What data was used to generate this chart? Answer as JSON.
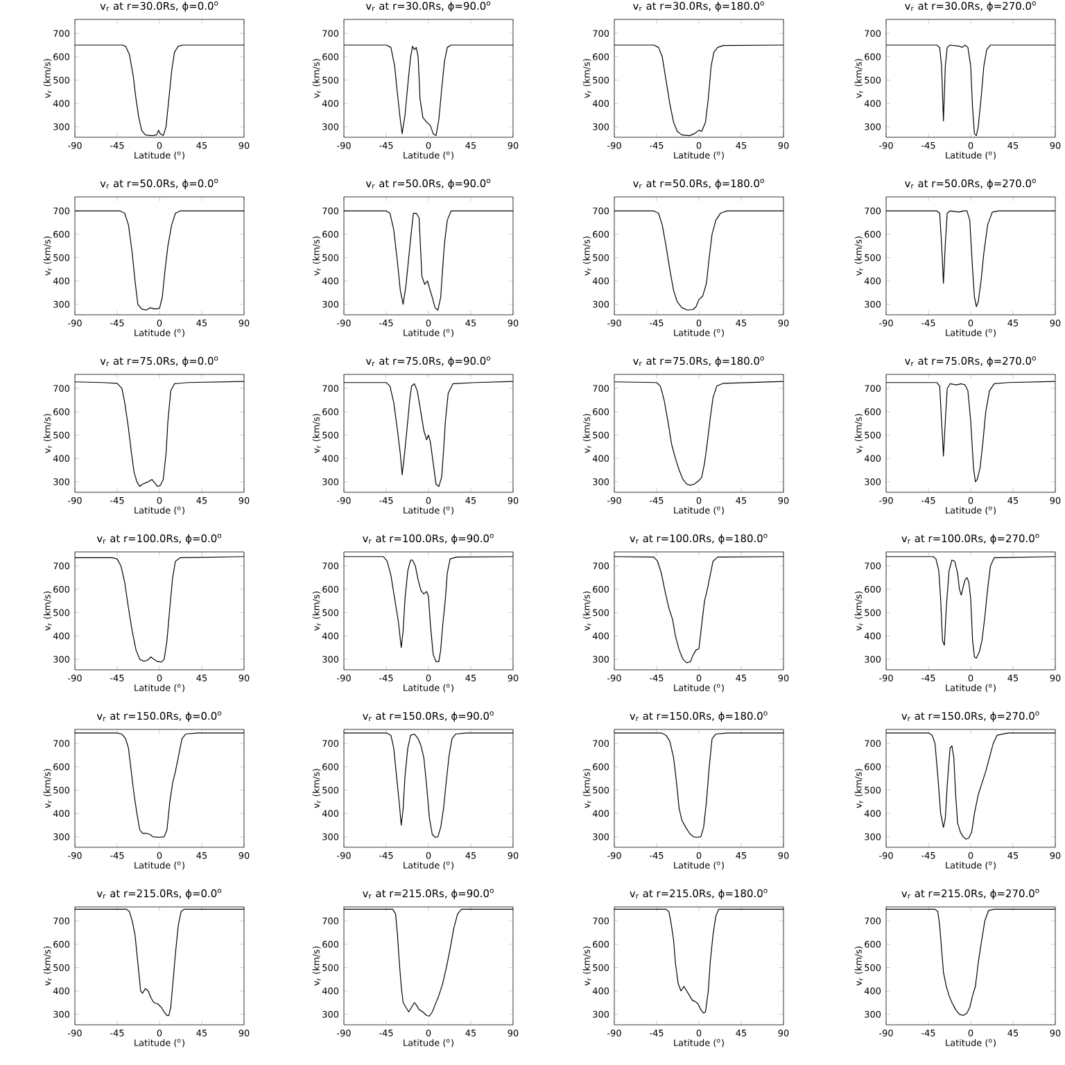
{
  "chart_data": [
    {
      "type": "line",
      "title": "v$_{r}$ at r=30.0Rs, ϕ=0.0$^{o}$",
      "xlabel": "Latitude ($^{o}$)",
      "ylabel": "v$_{r}$ (km/s)",
      "color": "#000000",
      "xlim": [
        -90,
        90
      ],
      "xticks": [
        -90,
        -45,
        0,
        45,
        90
      ],
      "ylim": [
        255,
        760
      ],
      "yticks": [
        300,
        400,
        500,
        600,
        700
      ],
      "x": [
        -90,
        -40,
        -36,
        -32,
        -28,
        -25,
        -22,
        -19,
        -15,
        -8,
        -3,
        -1,
        1,
        4,
        7,
        10,
        13,
        16,
        20,
        25,
        90
      ],
      "values": [
        650,
        650,
        645,
        610,
        520,
        420,
        340,
        285,
        265,
        262,
        265,
        285,
        270,
        262,
        300,
        420,
        540,
        620,
        645,
        650,
        650
      ]
    },
    {
      "type": "line",
      "title": "v$_{r}$ at r=30.0Rs, ϕ=90.0$^{o}$",
      "xlabel": "Latitude ($^{o}$)",
      "ylabel": "v$_{r}$ (km/s)",
      "color": "#000000",
      "xlim": [
        -90,
        90
      ],
      "xticks": [
        -90,
        -45,
        0,
        45,
        90
      ],
      "ylim": [
        255,
        760
      ],
      "yticks": [
        300,
        400,
        500,
        600,
        700
      ],
      "x": [
        -90,
        -45,
        -40,
        -36,
        -33,
        -30,
        -28,
        -25,
        -22,
        -19,
        -17,
        -15,
        -13,
        -11,
        -9,
        -6,
        -2,
        2,
        5,
        8,
        11,
        14,
        17,
        20,
        24,
        90
      ],
      "values": [
        650,
        650,
        640,
        560,
        440,
        330,
        270,
        350,
        480,
        600,
        645,
        630,
        640,
        600,
        420,
        340,
        320,
        305,
        270,
        262,
        330,
        460,
        580,
        640,
        650,
        650
      ]
    },
    {
      "type": "line",
      "title": "v$_{r}$ at r=30.0Rs, ϕ=180.0$^{o}$",
      "xlabel": "Latitude ($^{o}$)",
      "ylabel": "v$_{r}$ (km/s)",
      "color": "#000000",
      "xlim": [
        -90,
        90
      ],
      "xticks": [
        -90,
        -45,
        0,
        45,
        90
      ],
      "ylim": [
        255,
        760
      ],
      "yticks": [
        300,
        400,
        500,
        600,
        700
      ],
      "x": [
        -90,
        -48,
        -43,
        -39,
        -35,
        -31,
        -27,
        -23,
        -18,
        -10,
        -5,
        0,
        3,
        7,
        10,
        13,
        16,
        20,
        26,
        90
      ],
      "values": [
        650,
        650,
        640,
        600,
        500,
        400,
        320,
        280,
        265,
        262,
        270,
        285,
        280,
        320,
        420,
        560,
        620,
        640,
        648,
        650
      ]
    },
    {
      "type": "line",
      "title": "v$_{r}$ at r=30.0Rs, ϕ=270.0$^{o}$",
      "xlabel": "Latitude ($^{o}$)",
      "ylabel": "v$_{r}$ (km/s)",
      "color": "#000000",
      "xlim": [
        -90,
        90
      ],
      "xticks": [
        -90,
        -45,
        0,
        45,
        90
      ],
      "ylim": [
        255,
        760
      ],
      "yticks": [
        300,
        400,
        500,
        600,
        700
      ],
      "x": [
        -90,
        -36,
        -33,
        -31,
        -29,
        -27,
        -25,
        -22,
        -12,
        -9,
        -6,
        -3,
        0,
        2,
        4,
        6,
        8,
        11,
        14,
        17,
        21,
        90
      ],
      "values": [
        650,
        650,
        640,
        560,
        325,
        560,
        640,
        650,
        645,
        640,
        650,
        640,
        560,
        380,
        270,
        262,
        300,
        420,
        560,
        630,
        650,
        650
      ]
    },
    {
      "type": "line",
      "title": "v$_{r}$ at r=50.0Rs, ϕ=0.0$^{o}$",
      "xlabel": "Latitude ($^{o}$)",
      "ylabel": "v$_{r}$ (km/s)",
      "color": "#000000",
      "xlim": [
        -90,
        90
      ],
      "xticks": [
        -90,
        -45,
        0,
        45,
        90
      ],
      "ylim": [
        255,
        760
      ],
      "yticks": [
        300,
        400,
        500,
        600,
        700
      ],
      "x": [
        -90,
        -42,
        -37,
        -33,
        -29,
        -26,
        -23,
        -19,
        -14,
        -10,
        -5,
        0,
        3,
        6,
        9,
        13,
        17,
        22,
        90
      ],
      "values": [
        700,
        700,
        690,
        640,
        520,
        400,
        300,
        280,
        275,
        285,
        280,
        282,
        330,
        450,
        550,
        640,
        690,
        700,
        700
      ]
    },
    {
      "type": "line",
      "title": "v$_{r}$ at r=50.0Rs, ϕ=90.0$^{o}$",
      "xlabel": "Latitude ($^{o}$)",
      "ylabel": "v$_{r}$ (km/s)",
      "color": "#000000",
      "xlim": [
        -90,
        90
      ],
      "xticks": [
        -90,
        -45,
        0,
        45,
        90
      ],
      "ylim": [
        255,
        760
      ],
      "yticks": [
        300,
        400,
        500,
        600,
        700
      ],
      "x": [
        -90,
        -45,
        -41,
        -37,
        -33,
        -30,
        -27,
        -24,
        -21,
        -18,
        -16,
        -13,
        -10,
        -7,
        -4,
        -1,
        1,
        4,
        7,
        10,
        13,
        15,
        17,
        20,
        24,
        90
      ],
      "values": [
        700,
        700,
        690,
        620,
        480,
        360,
        300,
        380,
        500,
        620,
        690,
        690,
        670,
        420,
        385,
        400,
        370,
        330,
        285,
        275,
        330,
        450,
        560,
        660,
        700,
        700
      ]
    },
    {
      "type": "line",
      "title": "v$_{r}$ at r=50.0Rs, ϕ=180.0$^{o}$",
      "xlabel": "Latitude ($^{o}$)",
      "ylabel": "v$_{r}$ (km/s)",
      "color": "#000000",
      "xlim": [
        -90,
        90
      ],
      "xticks": [
        -90,
        -45,
        0,
        45,
        90
      ],
      "ylim": [
        255,
        760
      ],
      "yticks": [
        300,
        400,
        500,
        600,
        700
      ],
      "x": [
        -90,
        -48,
        -43,
        -39,
        -35,
        -31,
        -27,
        -23,
        -18,
        -12,
        -6,
        -3,
        0,
        4,
        8,
        11,
        14,
        18,
        23,
        30,
        90
      ],
      "values": [
        700,
        700,
        690,
        640,
        550,
        450,
        360,
        310,
        285,
        275,
        278,
        290,
        320,
        335,
        390,
        500,
        600,
        660,
        690,
        700,
        700
      ]
    },
    {
      "type": "line",
      "title": "v$_{r}$ at r=50.0Rs, ϕ=270.0$^{o}$",
      "xlabel": "Latitude ($^{o}$)",
      "ylabel": "v$_{r}$ (km/s)",
      "color": "#000000",
      "xlim": [
        -90,
        90
      ],
      "xticks": [
        -90,
        -45,
        0,
        45,
        90
      ],
      "ylim": [
        255,
        760
      ],
      "yticks": [
        300,
        400,
        500,
        600,
        700
      ],
      "x": [
        -90,
        -36,
        -33,
        -31,
        -29,
        -27,
        -25,
        -22,
        -12,
        -8,
        -4,
        -1,
        2,
        4,
        6,
        8,
        11,
        14,
        18,
        23,
        30,
        90
      ],
      "values": [
        700,
        700,
        690,
        560,
        390,
        560,
        690,
        700,
        695,
        700,
        700,
        660,
        450,
        330,
        290,
        310,
        400,
        520,
        640,
        695,
        700,
        700
      ]
    },
    {
      "type": "line",
      "title": "v$_{r}$ at r=75.0Rs, ϕ=0.0$^{o}$",
      "xlabel": "Latitude ($^{o}$)",
      "ylabel": "v$_{r}$ (km/s)",
      "color": "#000000",
      "xlim": [
        -90,
        90
      ],
      "xticks": [
        -90,
        -45,
        0,
        45,
        90
      ],
      "ylim": [
        255,
        760
      ],
      "yticks": [
        300,
        400,
        500,
        600,
        700
      ],
      "x": [
        -90,
        -60,
        -45,
        -40,
        -37,
        -33,
        -30,
        -27,
        -24,
        -21,
        -18,
        -12,
        -8,
        -5,
        -2,
        1,
        4,
        7,
        9,
        12,
        16,
        30,
        90
      ],
      "values": [
        728,
        725,
        722,
        700,
        640,
        530,
        430,
        340,
        300,
        280,
        290,
        300,
        310,
        295,
        280,
        285,
        310,
        420,
        560,
        690,
        720,
        725,
        730
      ]
    },
    {
      "type": "line",
      "title": "v$_{r}$ at r=75.0Rs, ϕ=90.0$^{o}$",
      "xlabel": "Latitude ($^{o}$)",
      "ylabel": "v$_{r}$ (km/s)",
      "color": "#000000",
      "xlim": [
        -90,
        90
      ],
      "xticks": [
        -90,
        -45,
        0,
        45,
        90
      ],
      "ylim": [
        255,
        760
      ],
      "yticks": [
        300,
        400,
        500,
        600,
        700
      ],
      "x": [
        -90,
        -45,
        -41,
        -37,
        -33,
        -30,
        -28,
        -26,
        -23,
        -20,
        -18,
        -15,
        -12,
        -9,
        -5,
        -2,
        0,
        2,
        5,
        8,
        11,
        14,
        16,
        18,
        21,
        26,
        50,
        90
      ],
      "values": [
        725,
        725,
        710,
        640,
        520,
        420,
        330,
        400,
        520,
        650,
        710,
        720,
        690,
        620,
        520,
        480,
        500,
        470,
        380,
        290,
        280,
        320,
        430,
        560,
        680,
        720,
        725,
        730
      ]
    },
    {
      "type": "line",
      "title": "v$_{r}$ at r=75.0Rs, ϕ=180.0$^{o}$",
      "xlabel": "Latitude ($^{o}$)",
      "ylabel": "v$_{r}$ (km/s)",
      "color": "#000000",
      "xlim": [
        -90,
        90
      ],
      "xticks": [
        -90,
        -45,
        0,
        45,
        90
      ],
      "ylim": [
        255,
        760
      ],
      "yticks": [
        300,
        400,
        500,
        600,
        700
      ],
      "x": [
        -90,
        -45,
        -41,
        -37,
        -33,
        -29,
        -25,
        -21,
        -17,
        -13,
        -9,
        -5,
        0,
        3,
        6,
        9,
        12,
        15,
        19,
        26,
        90
      ],
      "values": [
        728,
        725,
        710,
        650,
        560,
        460,
        400,
        350,
        310,
        290,
        285,
        290,
        305,
        320,
        380,
        470,
        570,
        660,
        710,
        722,
        730
      ]
    },
    {
      "type": "line",
      "title": "v$_{r}$ at r=75.0Rs, ϕ=270.0$^{o}$",
      "xlabel": "Latitude ($^{o}$)",
      "ylabel": "v$_{r}$ (km/s)",
      "color": "#000000",
      "xlim": [
        -90,
        90
      ],
      "xticks": [
        -90,
        -45,
        0,
        45,
        90
      ],
      "ylim": [
        255,
        760
      ],
      "yticks": [
        300,
        400,
        500,
        600,
        700
      ],
      "x": [
        -90,
        -36,
        -33,
        -31,
        -29,
        -27,
        -25,
        -22,
        -15,
        -10,
        -6,
        -3,
        0,
        3,
        5,
        7,
        10,
        13,
        16,
        20,
        25,
        40,
        90
      ],
      "values": [
        725,
        725,
        710,
        560,
        410,
        560,
        700,
        720,
        715,
        720,
        715,
        690,
        560,
        360,
        300,
        310,
        360,
        470,
        600,
        690,
        720,
        725,
        730
      ]
    },
    {
      "type": "line",
      "title": "v$_{r}$ at r=100.0Rs, ϕ=0.0$^{o}$",
      "xlabel": "Latitude ($^{o}$)",
      "ylabel": "v$_{r}$ (km/s)",
      "color": "#000000",
      "xlim": [
        -90,
        90
      ],
      "xticks": [
        -90,
        -45,
        0,
        45,
        90
      ],
      "ylim": [
        255,
        760
      ],
      "yticks": [
        300,
        400,
        500,
        600,
        700
      ],
      "x": [
        -90,
        -50,
        -45,
        -41,
        -37,
        -33,
        -29,
        -25,
        -21,
        -17,
        -13,
        -9,
        -6,
        -2,
        2,
        5,
        8,
        11,
        14,
        17,
        22,
        90
      ],
      "values": [
        735,
        735,
        730,
        700,
        630,
        520,
        420,
        340,
        300,
        292,
        295,
        310,
        300,
        290,
        288,
        300,
        380,
        520,
        650,
        720,
        735,
        740
      ]
    },
    {
      "type": "line",
      "title": "v$_{r}$ at r=100.0Rs, ϕ=90.0$^{o}$",
      "xlabel": "Latitude ($^{o}$)",
      "ylabel": "v$_{r}$ (km/s)",
      "color": "#000000",
      "xlim": [
        -90,
        90
      ],
      "xticks": [
        -90,
        -45,
        0,
        45,
        90
      ],
      "ylim": [
        255,
        760
      ],
      "yticks": [
        300,
        400,
        500,
        600,
        700
      ],
      "x": [
        -90,
        -48,
        -44,
        -40,
        -36,
        -32,
        -29,
        -27,
        -25,
        -22,
        -19,
        -17,
        -14,
        -11,
        -8,
        -5,
        -2,
        0,
        2,
        5,
        8,
        11,
        13,
        15,
        18,
        20,
        23,
        30,
        90
      ],
      "values": [
        740,
        740,
        720,
        660,
        560,
        460,
        350,
        420,
        560,
        680,
        725,
        725,
        700,
        640,
        595,
        580,
        590,
        570,
        450,
        320,
        290,
        290,
        340,
        440,
        560,
        670,
        730,
        738,
        740
      ]
    },
    {
      "type": "line",
      "title": "v$_{r}$ at r=100.0Rs, ϕ=180.0$^{o}$",
      "xlabel": "Latitude ($^{o}$)",
      "ylabel": "v$_{r}$ (km/s)",
      "color": "#000000",
      "xlim": [
        -90,
        90
      ],
      "xticks": [
        -90,
        -45,
        0,
        45,
        90
      ],
      "ylim": [
        255,
        760
      ],
      "yticks": [
        300,
        400,
        500,
        600,
        700
      ],
      "x": [
        -90,
        -48,
        -44,
        -40,
        -36,
        -32,
        -28,
        -25,
        -21,
        -17,
        -13,
        -9,
        -6,
        -3,
        0,
        3,
        6,
        9,
        12,
        15,
        20,
        90
      ],
      "values": [
        740,
        738,
        720,
        670,
        590,
        520,
        470,
        400,
        340,
        300,
        285,
        290,
        320,
        340,
        345,
        450,
        550,
        600,
        660,
        720,
        738,
        740
      ]
    },
    {
      "type": "line",
      "title": "v$_{r}$ at r=100.0Rs, ϕ=270.0$^{o}$",
      "xlabel": "Latitude ($^{o}$)",
      "ylabel": "v$_{r}$ (km/s)",
      "color": "#000000",
      "xlim": [
        -90,
        90
      ],
      "xticks": [
        -90,
        -45,
        0,
        45,
        90
      ],
      "ylim": [
        255,
        760
      ],
      "yticks": [
        300,
        400,
        500,
        600,
        700
      ],
      "x": [
        -90,
        -40,
        -37,
        -34,
        -32,
        -30,
        -28,
        -26,
        -23,
        -20,
        -17,
        -14,
        -12,
        -10,
        -8,
        -6,
        -4,
        -2,
        0,
        2,
        4,
        6,
        9,
        12,
        15,
        18,
        21,
        25,
        90
      ],
      "values": [
        740,
        740,
        730,
        680,
        560,
        380,
        360,
        520,
        680,
        725,
        720,
        670,
        600,
        575,
        610,
        640,
        650,
        630,
        560,
        380,
        310,
        305,
        330,
        380,
        480,
        600,
        700,
        735,
        740
      ]
    },
    {
      "type": "line",
      "title": "v$_{r}$ at r=150.0Rs, ϕ=0.0$^{o}$",
      "xlabel": "Latitude ($^{o}$)",
      "ylabel": "v$_{r}$ (km/s)",
      "color": "#000000",
      "xlim": [
        -90,
        90
      ],
      "xticks": [
        -90,
        -45,
        0,
        45,
        90
      ],
      "ylim": [
        255,
        760
      ],
      "yticks": [
        300,
        400,
        500,
        600,
        700
      ],
      "x": [
        -90,
        -45,
        -40,
        -36,
        -33,
        -30,
        -27,
        -24,
        -21,
        -18,
        -14,
        -10,
        -7,
        0,
        5,
        8,
        11,
        14,
        17,
        20,
        24,
        28,
        40,
        90
      ],
      "values": [
        745,
        745,
        740,
        720,
        680,
        580,
        480,
        400,
        330,
        315,
        315,
        310,
        300,
        298,
        300,
        330,
        450,
        530,
        580,
        640,
        720,
        740,
        745,
        745
      ]
    },
    {
      "type": "line",
      "title": "v$_{r}$ at r=150.0Rs, ϕ=90.0$^{o}$",
      "xlabel": "Latitude ($^{o}$)",
      "ylabel": "v$_{r}$ (km/s)",
      "color": "#000000",
      "xlim": [
        -90,
        90
      ],
      "xticks": [
        -90,
        -45,
        0,
        45,
        90
      ],
      "ylim": [
        255,
        760
      ],
      "yticks": [
        300,
        400,
        500,
        600,
        700
      ],
      "x": [
        -90,
        -45,
        -40,
        -37,
        -34,
        -31,
        -29,
        -27,
        -25,
        -22,
        -19,
        -15,
        -11,
        -8,
        -5,
        -2,
        1,
        4,
        7,
        10,
        13,
        16,
        19,
        22,
        25,
        29,
        40,
        90
      ],
      "values": [
        745,
        745,
        735,
        680,
        560,
        440,
        350,
        420,
        560,
        680,
        735,
        740,
        720,
        690,
        640,
        520,
        380,
        310,
        298,
        300,
        340,
        420,
        540,
        650,
        720,
        740,
        745,
        745
      ]
    },
    {
      "type": "line",
      "title": "v$_{r}$ at r=150.0Rs, ϕ=180.0$^{o}$",
      "xlabel": "Latitude ($^{o}$)",
      "ylabel": "v$_{r}$ (km/s)",
      "color": "#000000",
      "xlim": [
        -90,
        90
      ],
      "xticks": [
        -90,
        -45,
        0,
        45,
        90
      ],
      "ylim": [
        255,
        760
      ],
      "yticks": [
        300,
        400,
        500,
        600,
        700
      ],
      "x": [
        -90,
        -40,
        -35,
        -31,
        -27,
        -24,
        -21,
        -18,
        -14,
        -10,
        -6,
        -2,
        2,
        5,
        8,
        11,
        14,
        18,
        30,
        90
      ],
      "values": [
        745,
        745,
        735,
        710,
        640,
        540,
        420,
        370,
        340,
        315,
        300,
        298,
        300,
        340,
        450,
        600,
        720,
        740,
        745,
        745
      ]
    },
    {
      "type": "line",
      "title": "v$_{r}$ at r=150.0Rs, ϕ=270.0$^{o}$",
      "xlabel": "Latitude ($^{o}$)",
      "ylabel": "v$_{r}$ (km/s)",
      "color": "#000000",
      "xlim": [
        -90,
        90
      ],
      "xticks": [
        -90,
        -45,
        0,
        45,
        90
      ],
      "ylim": [
        255,
        760
      ],
      "yticks": [
        300,
        400,
        500,
        600,
        700
      ],
      "x": [
        -90,
        -45,
        -41,
        -38,
        -35,
        -32,
        -29,
        -27,
        -25,
        -22,
        -20,
        -18,
        -16,
        -14,
        -11,
        -8,
        -5,
        -2,
        1,
        4,
        8,
        12,
        16,
        20,
        24,
        28,
        40,
        90
      ],
      "values": [
        745,
        745,
        735,
        700,
        560,
        400,
        340,
        380,
        520,
        680,
        690,
        640,
        480,
        360,
        320,
        300,
        290,
        295,
        320,
        400,
        480,
        530,
        580,
        640,
        700,
        735,
        745,
        745
      ]
    },
    {
      "type": "line",
      "title": "v$_{r}$ at r=215.0Rs, ϕ=0.0$^{o}$",
      "xlabel": "Latitude ($^{o}$)",
      "ylabel": "v$_{r}$ (km/s)",
      "color": "#000000",
      "xlim": [
        -90,
        90
      ],
      "xticks": [
        -90,
        -45,
        0,
        45,
        90
      ],
      "ylim": [
        255,
        760
      ],
      "yticks": [
        300,
        400,
        500,
        600,
        700
      ],
      "x": [
        -90,
        -35,
        -32,
        -29,
        -26,
        -24,
        -22,
        -20,
        -18,
        -15,
        -12,
        -9,
        -6,
        -2,
        2,
        5,
        8,
        10,
        12,
        14,
        17,
        20,
        23,
        26,
        90
      ],
      "values": [
        750,
        750,
        740,
        700,
        640,
        560,
        480,
        400,
        390,
        410,
        400,
        370,
        350,
        345,
        330,
        310,
        295,
        295,
        330,
        420,
        560,
        680,
        740,
        750,
        750
      ]
    },
    {
      "type": "line",
      "title": "v$_{r}$ at r=215.0Rs, ϕ=90.0$^{o}$",
      "xlabel": "Latitude ($^{o}$)",
      "ylabel": "v$_{r}$ (km/s)",
      "color": "#000000",
      "xlim": [
        -90,
        90
      ],
      "xticks": [
        -90,
        -45,
        0,
        45,
        90
      ],
      "ylim": [
        255,
        760
      ],
      "yticks": [
        300,
        400,
        500,
        600,
        700
      ],
      "x": [
        -90,
        -38,
        -35,
        -33,
        -31,
        -29,
        -27,
        -24,
        -21,
        -18,
        -15,
        -13,
        -10,
        -6,
        -2,
        1,
        4,
        7,
        11,
        15,
        19,
        23,
        27,
        31,
        35,
        90
      ],
      "values": [
        750,
        750,
        730,
        640,
        520,
        420,
        350,
        330,
        310,
        330,
        350,
        340,
        320,
        310,
        295,
        292,
        310,
        340,
        380,
        430,
        500,
        580,
        670,
        730,
        750,
        750
      ]
    },
    {
      "type": "line",
      "title": "v$_{r}$ at r=215.0Rs, ϕ=180.0$^{o}$",
      "xlabel": "Latitude ($^{o}$)",
      "ylabel": "v$_{r}$ (km/s)",
      "color": "#000000",
      "xlim": [
        -90,
        90
      ],
      "xticks": [
        -90,
        -45,
        0,
        45,
        90
      ],
      "ylim": [
        255,
        760
      ],
      "yticks": [
        300,
        400,
        500,
        600,
        700
      ],
      "x": [
        -90,
        -35,
        -32,
        -30,
        -27,
        -25,
        -22,
        -19,
        -16,
        -13,
        -10,
        -7,
        -4,
        -1,
        2,
        5,
        7,
        10,
        12,
        15,
        18,
        21,
        90
      ],
      "values": [
        750,
        750,
        740,
        700,
        620,
        520,
        430,
        400,
        420,
        400,
        380,
        360,
        355,
        345,
        320,
        305,
        310,
        400,
        520,
        640,
        720,
        750,
        750
      ]
    },
    {
      "type": "line",
      "title": "v$_{r}$ at r=215.0Rs, ϕ=270.0$^{o}$",
      "xlabel": "Latitude ($^{o}$)",
      "ylabel": "v$_{r}$ (km/s)",
      "color": "#000000",
      "xlim": [
        -90,
        90
      ],
      "xticks": [
        -90,
        -45,
        0,
        45,
        90
      ],
      "ylim": [
        255,
        760
      ],
      "yticks": [
        300,
        400,
        500,
        600,
        700
      ],
      "x": [
        -90,
        -38,
        -35,
        -33,
        -31,
        -29,
        -26,
        -23,
        -20,
        -16,
        -12,
        -8,
        -4,
        -1,
        2,
        5,
        8,
        11,
        15,
        19,
        25,
        90
      ],
      "values": [
        750,
        750,
        740,
        680,
        580,
        480,
        420,
        380,
        350,
        320,
        300,
        295,
        305,
        330,
        380,
        420,
        520,
        600,
        700,
        745,
        750,
        750
      ]
    }
  ]
}
